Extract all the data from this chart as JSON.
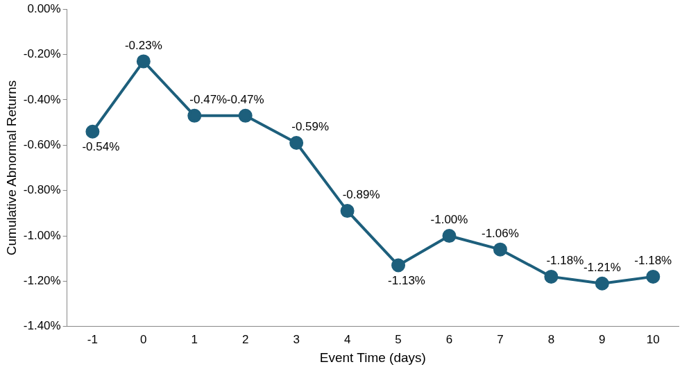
{
  "chart_data": {
    "type": "line",
    "xlabel": "Event Time (days)",
    "ylabel": "Cumulative Abnormal Returns",
    "categories": [
      "-1",
      "0",
      "1",
      "2",
      "3",
      "4",
      "5",
      "6",
      "7",
      "8",
      "9",
      "10"
    ],
    "series": [
      {
        "color": "#1d5f7c",
        "values": [
          -0.54,
          -0.23,
          -0.47,
          -0.47,
          -0.59,
          -0.89,
          -1.13,
          -1.0,
          -1.06,
          -1.18,
          -1.21,
          -1.18
        ],
        "value_labels": [
          "-0.54%",
          "-0.23%",
          "-0.47%",
          "-0.47%",
          "-0.59%",
          "-0.89%",
          "-1.13%",
          "-1.00%",
          "-1.06%",
          "-1.18%",
          "-1.21%",
          "-1.18%"
        ]
      }
    ],
    "ylim": [
      -1.4,
      0
    ],
    "yticks": [
      {
        "value": -1.4,
        "label": "-1.40%"
      },
      {
        "value": -1.2,
        "label": "-1.20%"
      },
      {
        "value": -1.0,
        "label": "-1.00%"
      },
      {
        "value": -0.8,
        "label": "-0.80%"
      },
      {
        "value": -0.6,
        "label": "-0.60%"
      },
      {
        "value": -0.4,
        "label": "-0.40%"
      },
      {
        "value": -0.2,
        "label": "-0.20%"
      },
      {
        "value": 0,
        "label": "0.00%"
      }
    ],
    "grid": false,
    "legend": false,
    "marker": "circle",
    "line_style": "solid"
  }
}
